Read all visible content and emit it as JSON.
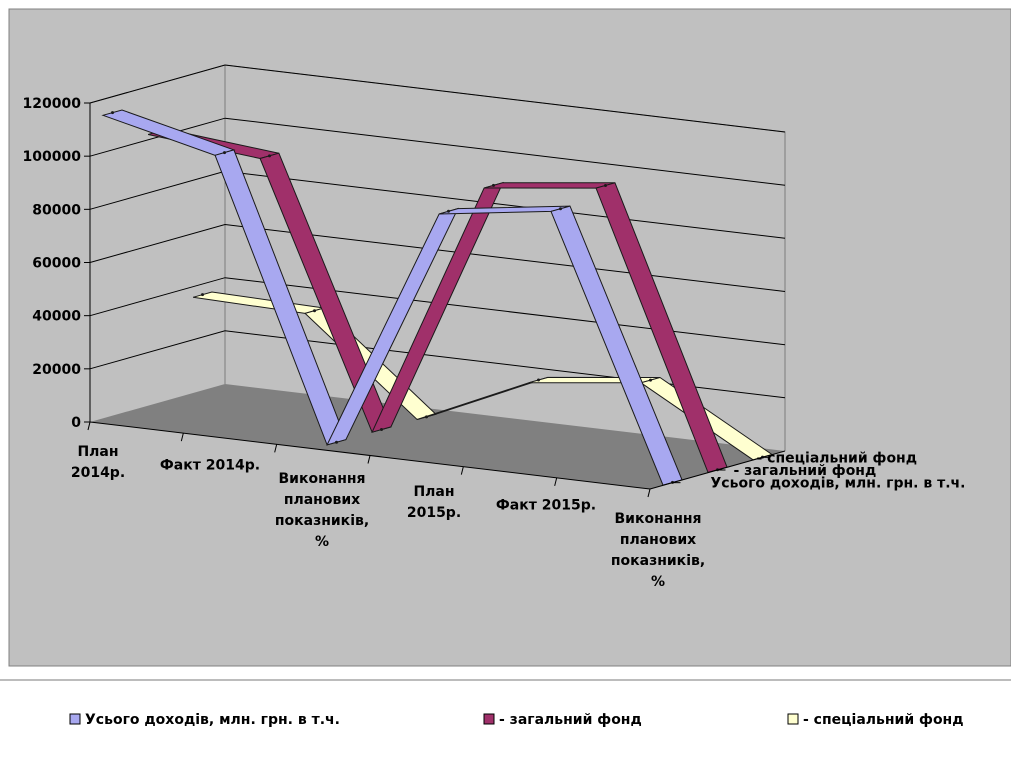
{
  "chart_data": {
    "type": "line",
    "style": "3d",
    "categories": [
      [
        "План",
        "2014р."
      ],
      [
        "Факт 2014р."
      ],
      [
        "Виконання",
        "планових",
        "показників,",
        "%"
      ],
      [
        "План",
        "2015р."
      ],
      [
        "Факт 2015р."
      ],
      [
        "Виконання",
        "планових",
        "показників,",
        "%"
      ]
    ],
    "series": [
      {
        "name": "Усього доходів, млн. грн. в т.ч.",
        "color": "#a8a8f0",
        "values": [
          114000,
          104000,
          95,
          92000,
          98000,
          94
        ]
      },
      {
        "name": "- загальний фонд",
        "color": "#a0306a",
        "values": [
          102000,
          98000,
          96,
          97000,
          102000,
          105
        ]
      },
      {
        "name": "- спеціальний фонд",
        "color": "#ffffd0",
        "values": [
          36000,
          35000,
          97,
          19000,
          24000,
          82
        ]
      }
    ],
    "y_ticks": [
      "0",
      "20000",
      "40000",
      "60000",
      "80000",
      "100000",
      "120000"
    ],
    "ylim": [
      0,
      120000
    ],
    "grid": true,
    "legend_position": "bottom",
    "colors": {
      "plot_background": "#c0c0c0",
      "floor": "#808080",
      "grid": "#000000"
    }
  }
}
